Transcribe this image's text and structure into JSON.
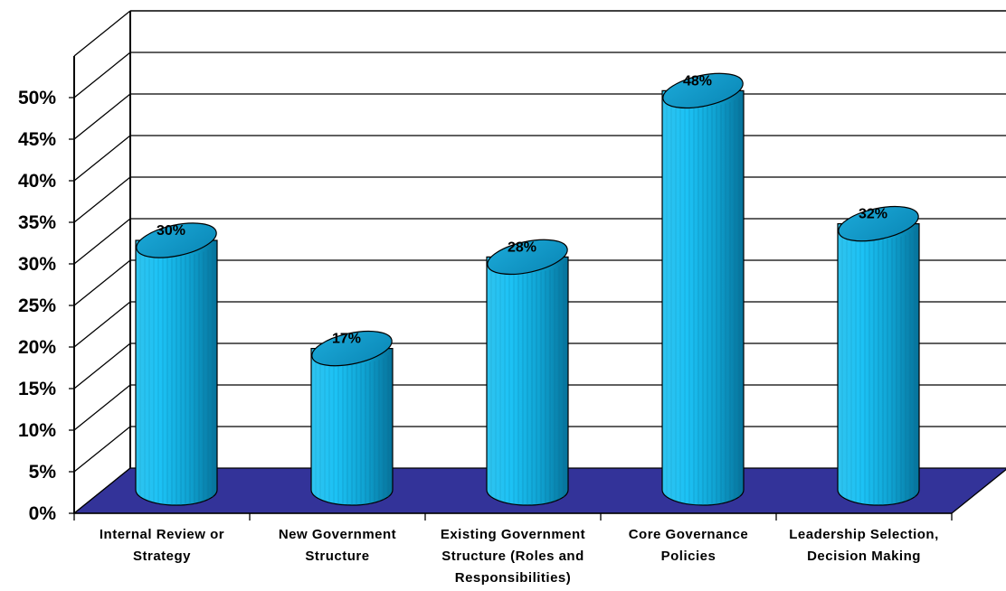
{
  "chart_data": {
    "type": "bar",
    "style": "3d-cylinder",
    "categories": [
      "Internal Review or Strategy",
      "New Government Structure",
      "Existing Government Structure (Roles and Responsibilities)",
      "Core Governance Policies",
      "Leadership Selection, Decision Making"
    ],
    "values": [
      30,
      17,
      28,
      48,
      32
    ],
    "value_labels": [
      "30%",
      "17%",
      "28%",
      "48%",
      "32%"
    ],
    "title": "",
    "xlabel": "",
    "ylabel": "",
    "ylim": [
      0,
      50
    ],
    "y_ticks": [
      "0%",
      "5%",
      "10%",
      "15%",
      "20%",
      "25%",
      "30%",
      "35%",
      "40%",
      "45%",
      "50%"
    ],
    "grid": true,
    "legend": "none",
    "colors": {
      "bar": "#00CCFF",
      "bar_top": "#0099CC",
      "floor": "#333399",
      "gridline": "#000000"
    }
  }
}
